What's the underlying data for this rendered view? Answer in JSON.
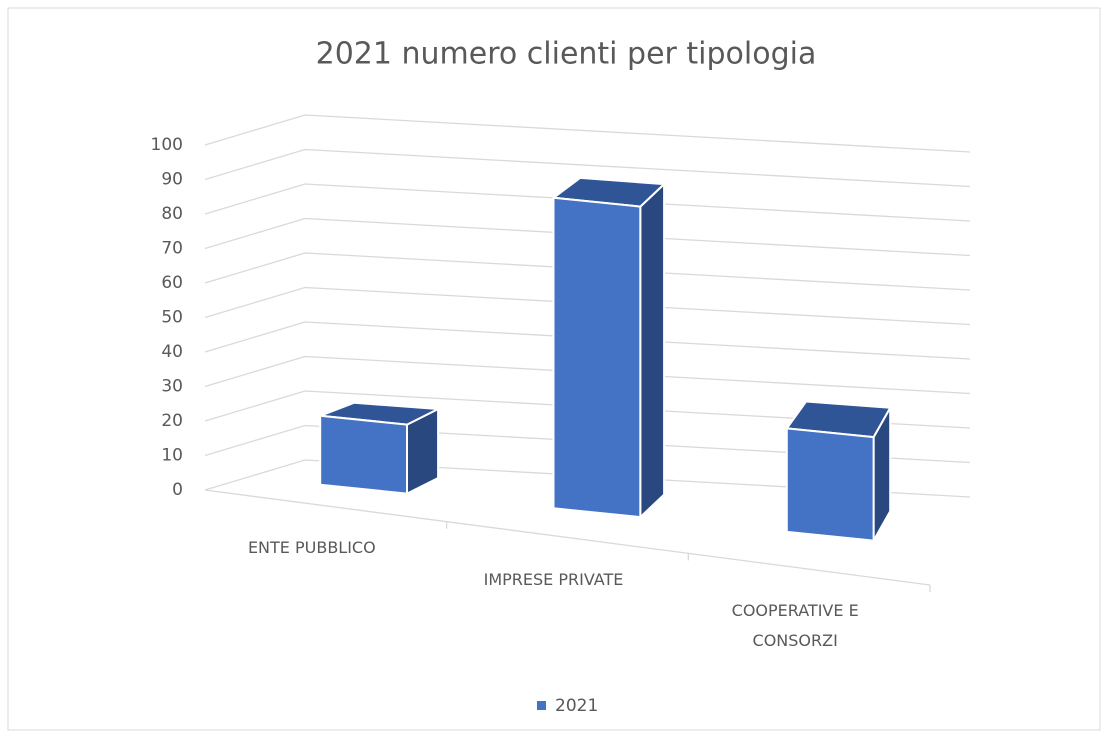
{
  "chart_data": {
    "type": "bar",
    "title": "2021 numero clienti per tipologia",
    "categories": [
      "ENTE PUBBLICO",
      "IMPRESE PRIVATE",
      "COOPERATIVE E CONSORZI"
    ],
    "series": [
      {
        "name": "2021",
        "color": "#4472c4",
        "values": [
          20,
          90,
          30
        ]
      }
    ],
    "ylim": [
      0,
      100
    ],
    "yticks": [
      0,
      10,
      20,
      30,
      40,
      50,
      60,
      70,
      80,
      90,
      100
    ],
    "grid": true,
    "legend": "bottom"
  }
}
